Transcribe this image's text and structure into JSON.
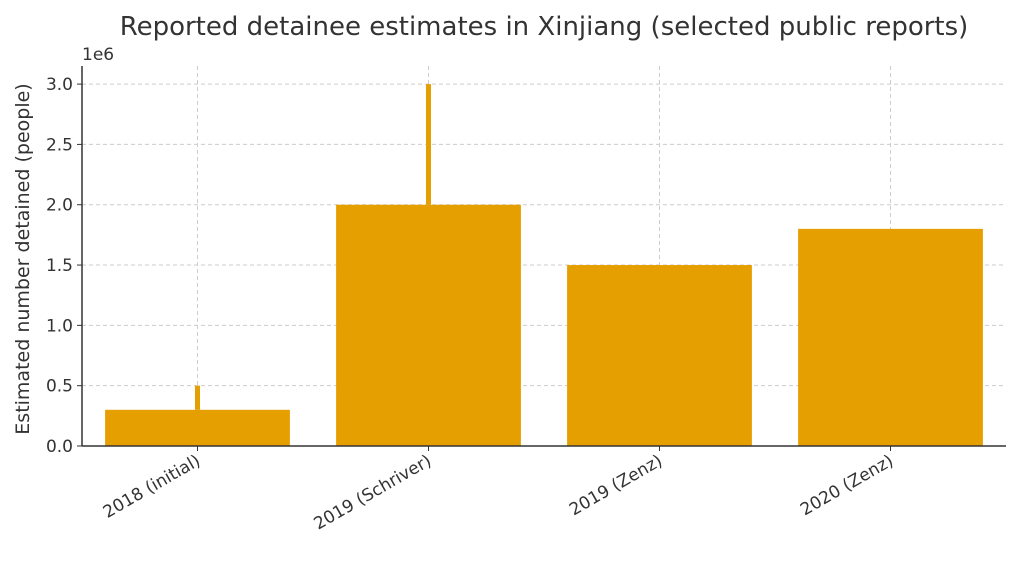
{
  "chart_data": {
    "type": "bar",
    "title": "Reported detainee estimates in Xinjiang (selected public reports)",
    "xlabel": "",
    "ylabel": "Estimated number detained (people)",
    "y_scale_label": "1e6",
    "categories": [
      "2018 (initial)",
      "2019 (Schriver)",
      "2019 (Zenz)",
      "2020 (Zenz)"
    ],
    "values": [
      300000,
      2000000,
      1500000,
      1800000
    ],
    "upper_range": [
      500000,
      3000000,
      null,
      null
    ],
    "ylim": [
      0,
      3150000
    ],
    "yticks": [
      0,
      500000,
      1000000,
      1500000,
      2000000,
      2500000,
      3000000
    ],
    "ytick_labels": [
      "0.0",
      "0.5",
      "1.0",
      "1.5",
      "2.0",
      "2.5",
      "3.0"
    ],
    "grid": true,
    "colors": {
      "bar": "#E69F00",
      "axis": "#333333",
      "grid": "#cccccc"
    }
  }
}
